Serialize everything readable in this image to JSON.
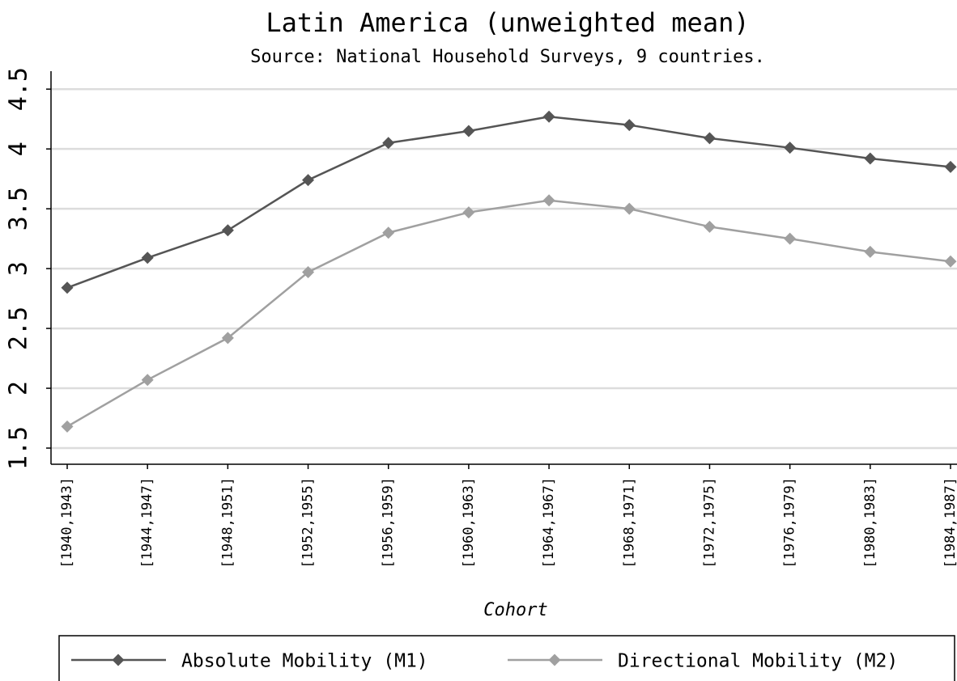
{
  "chart_data": {
    "type": "line",
    "title": "Latin America (unweighted mean)",
    "subtitle": "Source: National Household Surveys, 9 countries.",
    "x_label": "Cohort",
    "categories": [
      "[1940,1943]",
      "[1944,1947]",
      "[1948,1951]",
      "[1952,1955]",
      "[1956,1959]",
      "[1960,1963]",
      "[1964,1967]",
      "[1968,1971]",
      "[1972,1975]",
      "[1976,1979]",
      "[1980,1983]",
      "[1984,1987]"
    ],
    "series": [
      {
        "name": "Absolute Mobility (M1)",
        "color": "#555555",
        "values": [
          2.84,
          3.09,
          3.32,
          3.74,
          4.05,
          4.15,
          4.27,
          4.2,
          4.09,
          4.01,
          3.92,
          3.85
        ]
      },
      {
        "name": "Directional Mobility (M2)",
        "color": "#a0a0a0",
        "values": [
          1.68,
          2.07,
          2.42,
          2.97,
          3.3,
          3.47,
          3.57,
          3.5,
          3.35,
          3.25,
          3.14,
          3.06
        ]
      }
    ],
    "ylim": [
      1.365,
      4.65
    ],
    "yticks": [
      1.5,
      2,
      2.5,
      3,
      3.5,
      4,
      4.5
    ],
    "grid": true,
    "legend": "bottom"
  }
}
